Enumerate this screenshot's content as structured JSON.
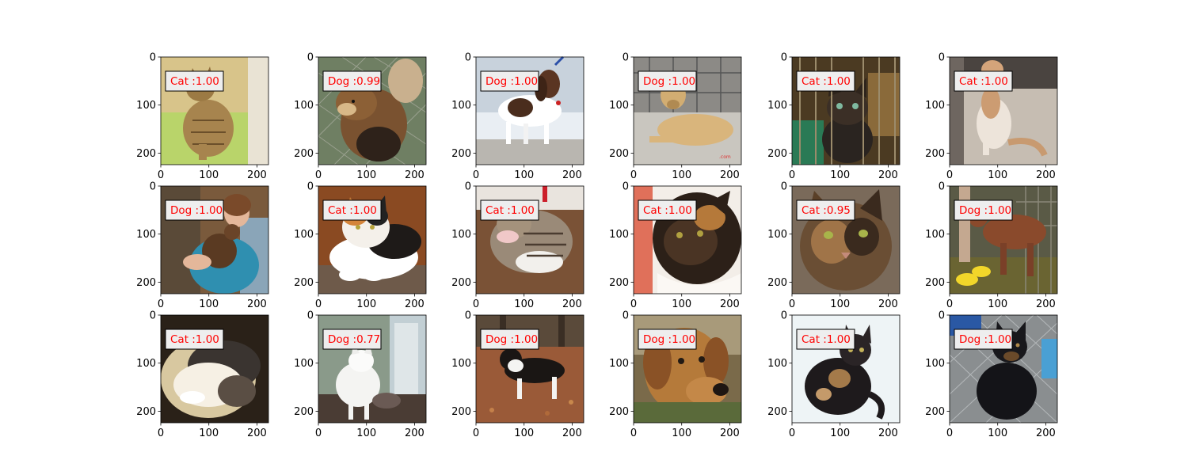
{
  "figure": {
    "axis_ticks": {
      "x": [
        "0",
        "100",
        "200"
      ],
      "y": [
        "0",
        "100",
        "200"
      ]
    },
    "label_color": "#ff0000",
    "label_box_fill": "#eeeeee",
    "panels": [
      {
        "label": "Cat :1.00",
        "subject": "tabby cat sitting on a green towel"
      },
      {
        "label": "Dog :0.99",
        "subject": "fluffy sable dog by a chain-link fence"
      },
      {
        "label": "Dog :1.00",
        "subject": "brown and white dachshund on a leash"
      },
      {
        "label": "Dog :1.00",
        "subject": "tan dog lying in a kennel"
      },
      {
        "label": "Cat :1.00",
        "subject": "tortoiseshell kitten behind cage bars"
      },
      {
        "label": "Cat :1.00",
        "subject": "orange and white cat sitting on concrete"
      },
      {
        "label": "Dog :1.00",
        "subject": "woman hugging a small brown dog"
      },
      {
        "label": "Cat :1.00",
        "subject": "calico cat lying on a cushion"
      },
      {
        "label": "Cat :1.00",
        "subject": "tabby cat grooming its paw"
      },
      {
        "label": "Cat :1.00",
        "subject": "tortoiseshell cat against white background"
      },
      {
        "label": "Cat :0.95",
        "subject": "close-up of tortoiseshell cat face"
      },
      {
        "label": "Dog :1.00",
        "subject": "brown dog standing next to a person in yellow shoes"
      },
      {
        "label": "Cat :1.00",
        "subject": "white and tabby cat sleeping in sunlight"
      },
      {
        "label": "Dog :0.77",
        "subject": "fluffy white cat standing indoors"
      },
      {
        "label": "Dog :1.00",
        "subject": "black and white border collie on autumn leaves"
      },
      {
        "label": "Dog :1.00",
        "subject": "close-up of brown dog face"
      },
      {
        "label": "Cat :1.00",
        "subject": "dark tortoiseshell cat sitting"
      },
      {
        "label": "Dog :1.00",
        "subject": "black dog sitting by a chain-link fence"
      }
    ]
  }
}
